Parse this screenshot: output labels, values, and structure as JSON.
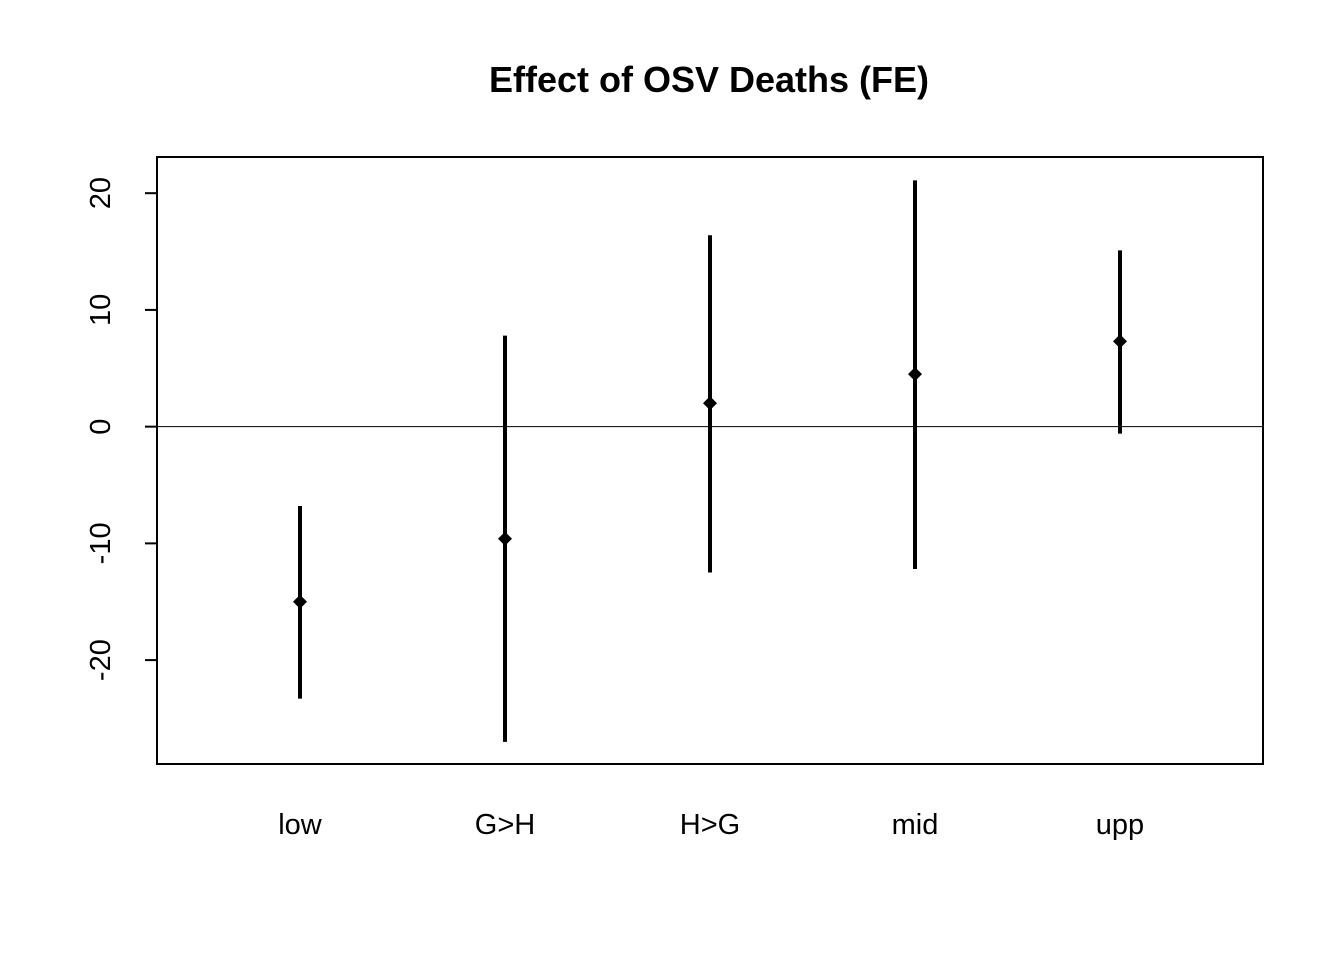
{
  "chart_data": {
    "type": "errorbar",
    "title": "Effect of OSV Deaths (FE)",
    "xlabel": "",
    "ylabel": "",
    "categories": [
      "low",
      "G>H",
      "H>G",
      "mid",
      "upp"
    ],
    "estimates": [
      -15.0,
      -9.6,
      2.0,
      4.5,
      7.3
    ],
    "lower": [
      -23.3,
      -27.0,
      -12.5,
      -12.2,
      -0.6
    ],
    "upper": [
      -6.8,
      7.8,
      16.4,
      21.1,
      15.1
    ],
    "ylim": [
      -28.9,
      23.1
    ],
    "yticks": [
      -20,
      -10,
      0,
      10,
      20
    ],
    "reference_line": 0,
    "grid": false,
    "legend": "none",
    "colors": {
      "bar": "#000000",
      "point": "#000000",
      "axis": "#000000"
    }
  }
}
